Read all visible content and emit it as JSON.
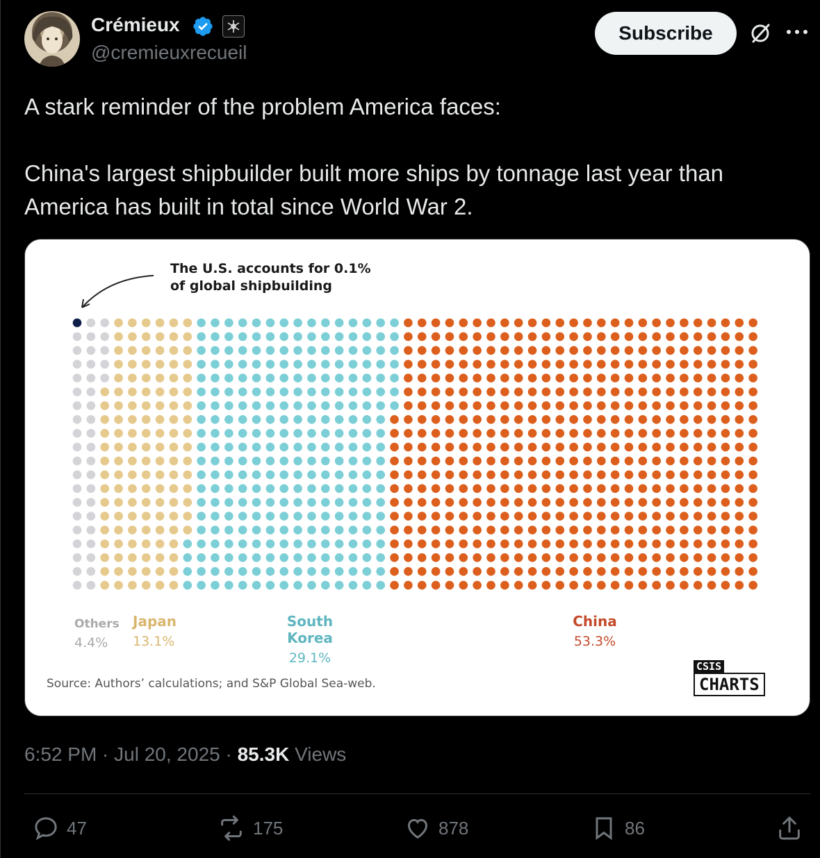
{
  "author": {
    "name": "Crémieux",
    "handle": "@cremieuxrecueil"
  },
  "header": {
    "subscribe_label": "Subscribe"
  },
  "tweet": {
    "line1": "A stark reminder of the problem America faces:",
    "line2": "China's largest shipbuilder built more ships by tonnage last year than America has built in total since World War 2."
  },
  "chart_data": {
    "type": "waffle",
    "annotation": "The U.S. accounts for 0.1% of global shipbuilding",
    "annotation_line1": "The U.S. accounts for 0.1%",
    "annotation_line2": "of global shipbuilding",
    "categories": [
      {
        "name": "U.S.",
        "value": 0.1,
        "color": "#0f1f4a"
      },
      {
        "name": "Others",
        "label": "4.4%",
        "value": 4.4,
        "color": "#d4d4d8"
      },
      {
        "name": "Japan",
        "label": "13.1%",
        "value": 13.1,
        "color": "#e6c98c"
      },
      {
        "name": "South Korea",
        "label": "29.1%",
        "value": 29.1,
        "color": "#7ccfd6"
      },
      {
        "name": "China",
        "label": "53.3%",
        "value": 53.3,
        "color": "#dc5f1d"
      }
    ],
    "source": "Source: Authors’ calculations; and S&P Global Sea-web.",
    "logo_top": "CSIS",
    "logo_bottom": "CHARTS"
  },
  "meta": {
    "time": "6:52 PM · Jul 20, 2025 · ",
    "views_count": "85.3K",
    "views_label": " Views"
  },
  "actions": {
    "replies": "47",
    "reposts": "175",
    "likes": "878",
    "bookmarks": "86"
  },
  "colors": {
    "background": "#000000",
    "text": "#e7e9ea",
    "muted": "#71767b",
    "verified": "#1d9bf0"
  }
}
